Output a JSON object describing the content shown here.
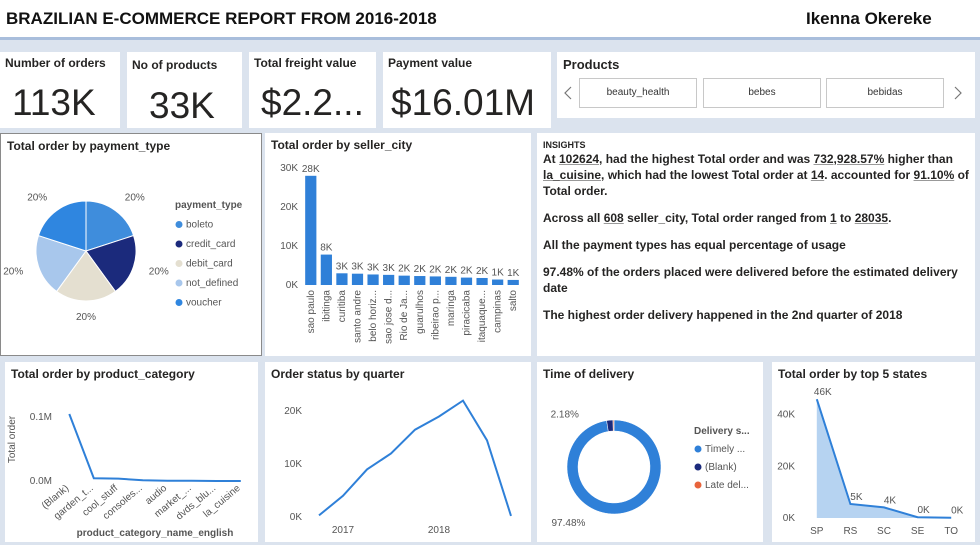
{
  "header": {
    "title": "BRAZILIAN E-COMMERCE REPORT FROM 2016-2018",
    "author": "Ikenna Okereke"
  },
  "cards": [
    {
      "label": "Number of orders",
      "value": "113K"
    },
    {
      "label": "No of products",
      "value": "33K"
    },
    {
      "label": "Total freight value",
      "value": "$2.2..."
    },
    {
      "label": "Payment value",
      "value": "$16.01M"
    }
  ],
  "slicer": {
    "title": "Products",
    "items": [
      "beauty_health",
      "bebes",
      "bebidas"
    ]
  },
  "insights": {
    "title": "INSIGHTS",
    "paragraphs": [
      [
        "At ",
        "102624",
        ",  had the highest Total order and was ",
        "732,928.57%",
        " higher than ",
        "la_cuisine",
        ", which had the lowest Total order at ",
        "14",
        ". accounted for ",
        "91.10%",
        " of Total order."
      ],
      [
        "Across all ",
        "608",
        " seller_city, Total order ranged from ",
        "1",
        " to ",
        "28035",
        "."
      ],
      [
        "All the payment types has equal percentage of usage"
      ],
      [
        "97.48% of the orders placed were delivered before the estimated delivery date"
      ],
      [
        "The highest order delivery happened in the 2nd quarter of 2018"
      ]
    ]
  },
  "chart_data": [
    {
      "type": "pie",
      "title": "Total order by payment_type",
      "legend_title": "payment_type",
      "categories": [
        "boleto",
        "credit_card",
        "debit_card",
        "not_defined",
        "voucher"
      ],
      "values": [
        20,
        20,
        20,
        20,
        20
      ],
      "value_labels": [
        "20%",
        "20%",
        "20%",
        "20%",
        "20%"
      ],
      "colors": [
        "#3f8ddc",
        "#1b2a7c",
        "#e4dfd0",
        "#a8c7ec",
        "#2f86e0"
      ]
    },
    {
      "type": "bar",
      "title": "Total order by seller_city",
      "categories": [
        "sao paulo",
        "ibitinga",
        "curitiba",
        "santo andre",
        "belo horiz...",
        "sao jose d...",
        "Rio de Ja...",
        "guarulhos",
        "ribeirao p...",
        "maringa",
        "piracicaba",
        "itaquaque...",
        "campinas",
        "salto"
      ],
      "values": [
        28000,
        7800,
        3000,
        2900,
        2700,
        2600,
        2400,
        2300,
        2200,
        2100,
        1900,
        1800,
        1400,
        1300
      ],
      "value_labels": [
        "28K",
        "8K",
        "3K",
        "3K",
        "3K",
        "3K",
        "2K",
        "2K",
        "2K",
        "2K",
        "2K",
        "2K",
        "1K",
        "1K"
      ],
      "color": "#2f80d8",
      "ylim": [
        0,
        30000
      ],
      "yticks": [
        {
          "value": 0,
          "label": "0K"
        },
        {
          "value": 10000,
          "label": "10K"
        },
        {
          "value": 20000,
          "label": "20K"
        },
        {
          "value": 30000,
          "label": "30K"
        }
      ]
    },
    {
      "type": "line",
      "title": "Total order by product_category",
      "xlabel": "product_category_name_english",
      "ylabel": "Total order",
      "categories": [
        "(Blank)",
        "garden_t...",
        "cool_stuff",
        "consoles...",
        "audio",
        "market_...",
        "dvds_blu...",
        "la_cuisine"
      ],
      "values": [
        105000,
        4400,
        3800,
        1100,
        360,
        300,
        60,
        14
      ],
      "color": "#2f80d8",
      "ylim": [
        0,
        130000
      ],
      "yticks": [
        {
          "value": 0,
          "label": "0.0M"
        },
        {
          "value": 100000,
          "label": "0.1M"
        }
      ]
    },
    {
      "type": "line",
      "title": "Order status by quarter",
      "categories": [
        null,
        "2017",
        null,
        null,
        null,
        "2018",
        null,
        null,
        null
      ],
      "values": [
        300,
        4000,
        9000,
        12000,
        16500,
        19000,
        22000,
        14500,
        200
      ],
      "color": "#2f80d8",
      "ylim": [
        0,
        24000
      ],
      "yticks": [
        {
          "value": 0,
          "label": "0K"
        },
        {
          "value": 10000,
          "label": "10K"
        },
        {
          "value": 20000,
          "label": "20K"
        }
      ]
    },
    {
      "type": "pie",
      "donut": true,
      "title": "Time of delivery",
      "legend_title": "Delivery s...",
      "categories": [
        "Timely ...",
        "(Blank)",
        "Late del..."
      ],
      "values": [
        97.48,
        2.18,
        0.34
      ],
      "value_labels": [
        "97.48%",
        "2.18%",
        null
      ],
      "colors": [
        "#2f80d8",
        "#1b2a7c",
        "#e8643c"
      ]
    },
    {
      "type": "area",
      "title": "Total order by top 5 states",
      "categories": [
        "SP",
        "RS",
        "SC",
        "SE",
        "TO"
      ],
      "values": [
        46000,
        5400,
        4100,
        300,
        100
      ],
      "value_labels": [
        "46K",
        "5K",
        "4K",
        "0K",
        "0K"
      ],
      "color": "#2f80d8",
      "ylim": [
        0,
        48000
      ],
      "yticks": [
        {
          "value": 0,
          "label": "0K"
        },
        {
          "value": 20000,
          "label": "20K"
        },
        {
          "value": 40000,
          "label": "40K"
        }
      ]
    }
  ]
}
